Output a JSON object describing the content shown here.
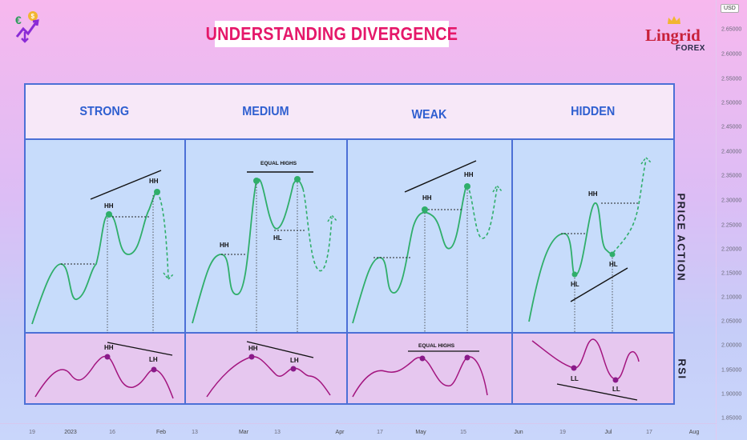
{
  "title": "UNDERSTANDING DIVERGENCE",
  "brand": {
    "name": "Lingrid",
    "sub": "FOREX"
  },
  "icons": [
    "finance-logo-icon",
    "crown-icon"
  ],
  "colors": {
    "accent_title": "#e5186a",
    "column_headers": "#2f5fd0",
    "panel_border": "#4c70d6",
    "price_line": "#2fae6a",
    "rsi_line": "#a3157f",
    "rsi_point": "#8a1a8a",
    "price_point": "#2fae6a"
  },
  "columns": [
    {
      "header": "STRONG"
    },
    {
      "header": "MEDIUM"
    },
    {
      "header": "WEAK"
    },
    {
      "header": "HIDDEN"
    }
  ],
  "side_labels": {
    "price": "PRICE ACTION",
    "rsi": "RSI"
  },
  "annotations": {
    "hh": "HH",
    "hl": "HL",
    "lh": "LH",
    "ll": "LL",
    "equal_highs": "EQUAL HIGHS"
  },
  "price_axis": {
    "currency": "USD",
    "ticks": [
      "2.65000",
      "2.60000",
      "2.55000",
      "2.50000",
      "2.45000",
      "2.40000",
      "2.35000",
      "2.30000",
      "2.25000",
      "2.20000",
      "2.15000",
      "2.10000",
      "2.05000",
      "2.00000",
      "1.95000",
      "1.90000",
      "1.85000"
    ]
  },
  "time_axis": {
    "ticks": [
      "19",
      "2023",
      "16",
      "Feb",
      "13",
      "Mar",
      "13",
      "Apr",
      "17",
      "May",
      "15",
      "Jun",
      "19",
      "Jul",
      "17",
      "Aug"
    ]
  }
}
